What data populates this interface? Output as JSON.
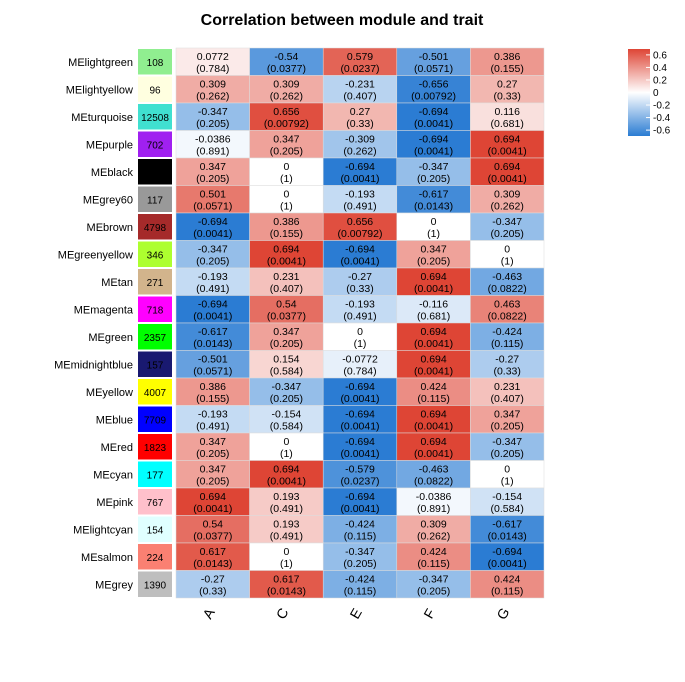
{
  "chart_data": {
    "type": "heatmap",
    "title": "Correlation between module and trait",
    "columns": [
      "A",
      "C",
      "E",
      "F",
      "G"
    ],
    "legend": {
      "ticks": [
        "0.6",
        "0.4",
        "0.2",
        "0",
        "-0.2",
        "-0.4",
        "-0.6"
      ],
      "tick_values": [
        0.6,
        0.4,
        0.2,
        0,
        -0.2,
        -0.4,
        -0.6
      ],
      "range": [
        -0.694,
        0.694
      ]
    },
    "colors": {
      "negative": "#2b7cd3",
      "zero": "#ffffff",
      "positive": "#de4535"
    },
    "rows": [
      {
        "name": "MElightgreen",
        "count": "108",
        "color": "#90ee90",
        "text_color": "#000000",
        "corr": [
          "0.0772",
          "-0.54",
          "0.579",
          "-0.501",
          "0.386"
        ],
        "pval": [
          "(0.784)",
          "(0.0377)",
          "(0.0237)",
          "(0.0571)",
          "(0.155)"
        ]
      },
      {
        "name": "MElightyellow",
        "count": "96",
        "color": "#ffffe0",
        "text_color": "#000000",
        "corr": [
          "0.309",
          "0.309",
          "-0.231",
          "-0.656",
          "0.27"
        ],
        "pval": [
          "(0.262)",
          "(0.262)",
          "(0.407)",
          "(0.00792)",
          "(0.33)"
        ]
      },
      {
        "name": "MEturquoise",
        "count": "12508",
        "color": "#40e0d0",
        "text_color": "#000000",
        "corr": [
          "-0.347",
          "0.656",
          "0.27",
          "-0.694",
          "0.116"
        ],
        "pval": [
          "(0.205)",
          "(0.00792)",
          "(0.33)",
          "(0.0041)",
          "(0.681)"
        ]
      },
      {
        "name": "MEpurple",
        "count": "702",
        "color": "#a020f0",
        "text_color": "#000000",
        "corr": [
          "-0.0386",
          "0.347",
          "-0.309",
          "-0.694",
          "0.694"
        ],
        "pval": [
          "(0.891)",
          "(0.205)",
          "(0.262)",
          "(0.0041)",
          "(0.0041)"
        ]
      },
      {
        "name": "MEblack",
        "count": "",
        "color": "#000000",
        "text_color": "#000000",
        "corr": [
          "0.347",
          "0",
          "-0.694",
          "-0.347",
          "0.694"
        ],
        "pval": [
          "(0.205)",
          "(1)",
          "(0.0041)",
          "(0.205)",
          "(0.0041)"
        ]
      },
      {
        "name": "MEgrey60",
        "count": "117",
        "color": "#999999",
        "text_color": "#000000",
        "corr": [
          "0.501",
          "0",
          "-0.193",
          "-0.617",
          "0.309"
        ],
        "pval": [
          "(0.0571)",
          "(1)",
          "(0.491)",
          "(0.0143)",
          "(0.262)"
        ]
      },
      {
        "name": "MEbrown",
        "count": "4798",
        "color": "#a52a2a",
        "text_color": "#000000",
        "corr": [
          "-0.694",
          "0.386",
          "0.656",
          "0",
          "-0.347"
        ],
        "pval": [
          "(0.0041)",
          "(0.155)",
          "(0.00792)",
          "(1)",
          "(0.205)"
        ]
      },
      {
        "name": "MEgreenyellow",
        "count": "346",
        "color": "#adff2f",
        "text_color": "#000000",
        "corr": [
          "-0.347",
          "0.694",
          "-0.694",
          "0.347",
          "0"
        ],
        "pval": [
          "(0.205)",
          "(0.0041)",
          "(0.0041)",
          "(0.205)",
          "(1)"
        ]
      },
      {
        "name": "MEtan",
        "count": "271",
        "color": "#d2b48c",
        "text_color": "#000000",
        "corr": [
          "-0.193",
          "0.231",
          "-0.27",
          "0.694",
          "-0.463"
        ],
        "pval": [
          "(0.491)",
          "(0.407)",
          "(0.33)",
          "(0.0041)",
          "(0.0822)"
        ]
      },
      {
        "name": "MEmagenta",
        "count": "718",
        "color": "#ff00ff",
        "text_color": "#000000",
        "corr": [
          "-0.694",
          "0.54",
          "-0.193",
          "-0.116",
          "0.463"
        ],
        "pval": [
          "(0.0041)",
          "(0.0377)",
          "(0.491)",
          "(0.681)",
          "(0.0822)"
        ]
      },
      {
        "name": "MEgreen",
        "count": "2357",
        "color": "#00ff00",
        "text_color": "#000000",
        "corr": [
          "-0.617",
          "0.347",
          "0",
          "0.694",
          "-0.424"
        ],
        "pval": [
          "(0.0143)",
          "(0.205)",
          "(1)",
          "(0.0041)",
          "(0.115)"
        ]
      },
      {
        "name": "MEmidnightblue",
        "count": "157",
        "color": "#191970",
        "text_color": "#000000",
        "corr": [
          "-0.501",
          "0.154",
          "-0.0772",
          "0.694",
          "-0.27"
        ],
        "pval": [
          "(0.0571)",
          "(0.584)",
          "(0.784)",
          "(0.0041)",
          "(0.33)"
        ]
      },
      {
        "name": "MEyellow",
        "count": "4007",
        "color": "#ffff00",
        "text_color": "#000000",
        "corr": [
          "0.386",
          "-0.347",
          "-0.694",
          "0.424",
          "0.231"
        ],
        "pval": [
          "(0.155)",
          "(0.205)",
          "(0.0041)",
          "(0.115)",
          "(0.407)"
        ]
      },
      {
        "name": "MEblue",
        "count": "7709",
        "color": "#0000ff",
        "text_color": "#000000",
        "corr": [
          "-0.193",
          "-0.154",
          "-0.694",
          "0.694",
          "0.347"
        ],
        "pval": [
          "(0.491)",
          "(0.584)",
          "(0.0041)",
          "(0.0041)",
          "(0.205)"
        ]
      },
      {
        "name": "MEred",
        "count": "1823",
        "color": "#ff0000",
        "text_color": "#000000",
        "corr": [
          "0.347",
          "0",
          "-0.694",
          "0.694",
          "-0.347"
        ],
        "pval": [
          "(0.205)",
          "(1)",
          "(0.0041)",
          "(0.0041)",
          "(0.205)"
        ]
      },
      {
        "name": "MEcyan",
        "count": "177",
        "color": "#00ffff",
        "text_color": "#000000",
        "corr": [
          "0.347",
          "0.694",
          "-0.579",
          "-0.463",
          "0"
        ],
        "pval": [
          "(0.205)",
          "(0.0041)",
          "(0.0237)",
          "(0.0822)",
          "(1)"
        ]
      },
      {
        "name": "MEpink",
        "count": "767",
        "color": "#ffc0cb",
        "text_color": "#000000",
        "corr": [
          "0.694",
          "0.193",
          "-0.694",
          "-0.0386",
          "-0.154"
        ],
        "pval": [
          "(0.0041)",
          "(0.491)",
          "(0.0041)",
          "(0.891)",
          "(0.584)"
        ]
      },
      {
        "name": "MElightcyan",
        "count": "154",
        "color": "#e0ffff",
        "text_color": "#000000",
        "corr": [
          "0.54",
          "0.193",
          "-0.424",
          "0.309",
          "-0.617"
        ],
        "pval": [
          "(0.0377)",
          "(0.491)",
          "(0.115)",
          "(0.262)",
          "(0.0143)"
        ]
      },
      {
        "name": "MEsalmon",
        "count": "224",
        "color": "#fa8072",
        "text_color": "#000000",
        "corr": [
          "0.617",
          "0",
          "-0.347",
          "0.424",
          "-0.694"
        ],
        "pval": [
          "(0.0143)",
          "(1)",
          "(0.205)",
          "(0.115)",
          "(0.0041)"
        ]
      },
      {
        "name": "MEgrey",
        "count": "1390",
        "color": "#bebebe",
        "text_color": "#000000",
        "corr": [
          "-0.27",
          "0.617",
          "-0.424",
          "-0.347",
          "0.424"
        ],
        "pval": [
          "(0.33)",
          "(0.0143)",
          "(0.115)",
          "(0.205)",
          "(0.115)"
        ]
      }
    ]
  }
}
